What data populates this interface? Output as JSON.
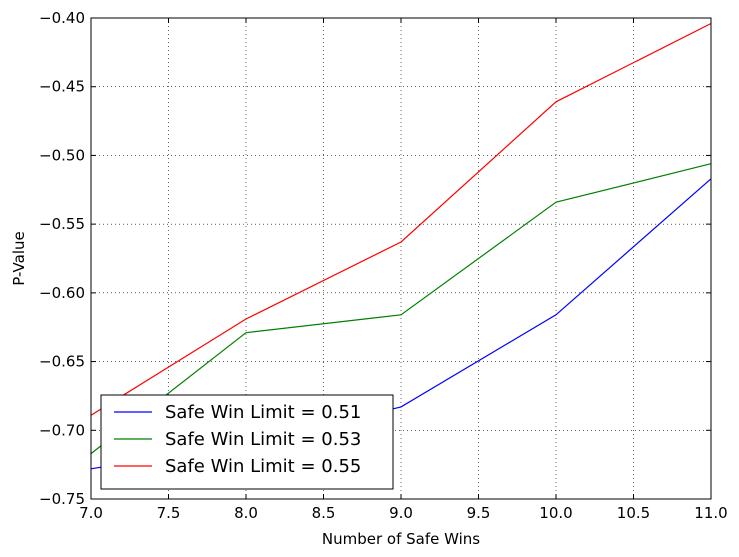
{
  "chart_data": {
    "type": "line",
    "title": "",
    "xlabel": "Number of Safe Wins",
    "ylabel": "P-Value",
    "xlim": [
      7.0,
      11.0
    ],
    "ylim": [
      -0.75,
      -0.4
    ],
    "x_ticks": [
      "7.0",
      "7.5",
      "8.0",
      "8.5",
      "9.0",
      "9.5",
      "10.0",
      "10.5",
      "11.0"
    ],
    "y_ticks": [
      "−0.40",
      "−0.45",
      "−0.50",
      "−0.55",
      "−0.60",
      "−0.65",
      "−0.70",
      "−0.75"
    ],
    "grid": true,
    "legend_position": "lower-left",
    "x": [
      7,
      8,
      9,
      10,
      11
    ],
    "series": [
      {
        "name": "Safe Win Limit = 0.51",
        "color": "#0000ff",
        "values": [
          -0.728,
          -0.71,
          -0.683,
          -0.616,
          -0.517
        ]
      },
      {
        "name": "Safe Win Limit = 0.53",
        "color": "#008000",
        "values": [
          -0.717,
          -0.629,
          -0.616,
          -0.534,
          -0.506
        ]
      },
      {
        "name": "Safe Win Limit = 0.55",
        "color": "#ff0000",
        "values": [
          -0.689,
          -0.619,
          -0.563,
          -0.461,
          -0.404
        ]
      }
    ]
  }
}
